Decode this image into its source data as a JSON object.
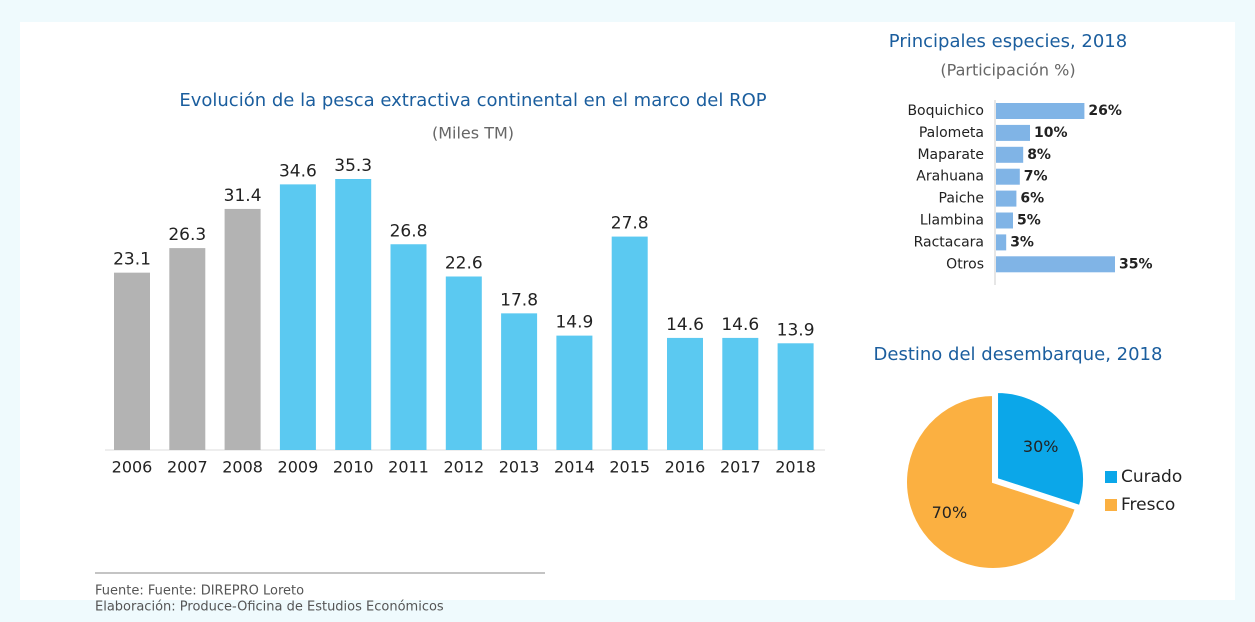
{
  "chart_data": [
    {
      "type": "bar",
      "title": "Evolución de la pesca extractiva continental en el marco del ROP",
      "subtitle": "(Miles TM)",
      "categories": [
        "2006",
        "2007",
        "2008",
        "2009",
        "2010",
        "2011",
        "2012",
        "2013",
        "2014",
        "2015",
        "2016",
        "2017",
        "2018"
      ],
      "values": [
        23.1,
        26.3,
        31.4,
        34.6,
        35.3,
        26.8,
        22.6,
        17.8,
        14.9,
        27.8,
        14.6,
        14.6,
        13.9
      ],
      "colors": [
        "#b3b3b3",
        "#b3b3b3",
        "#b3b3b3",
        "#5bc9f1",
        "#5bc9f1",
        "#5bc9f1",
        "#5bc9f1",
        "#5bc9f1",
        "#5bc9f1",
        "#5bc9f1",
        "#5bc9f1",
        "#5bc9f1",
        "#5bc9f1"
      ]
    },
    {
      "type": "hbar",
      "title": "Principales especies, 2018",
      "subtitle": "(Participación %)",
      "categories": [
        "Boquichico",
        "Palometa",
        "Maparate",
        "Arahuana",
        "Paiche",
        "Llambina",
        "Ractacara",
        "Otros"
      ],
      "values": [
        26,
        10,
        8,
        7,
        6,
        5,
        3,
        35
      ],
      "value_labels": [
        "26%",
        "10%",
        "8%",
        "7%",
        "6%",
        "5%",
        "3%",
        "35%"
      ],
      "color": "#80b4e6"
    },
    {
      "type": "pie",
      "title": "Destino del desembarque, 2018",
      "categories": [
        "Curado",
        "Fresco"
      ],
      "values": [
        30,
        70
      ],
      "value_labels": [
        "30%",
        "70%"
      ],
      "colors": [
        "#0ba7e9",
        "#fbb041"
      ],
      "legend": "right"
    }
  ],
  "footer": {
    "source": "Fuente: Fuente: DIREPRO Loreto",
    "credit": "Elaboración: Produce-Oficina de Estudios Económicos"
  }
}
